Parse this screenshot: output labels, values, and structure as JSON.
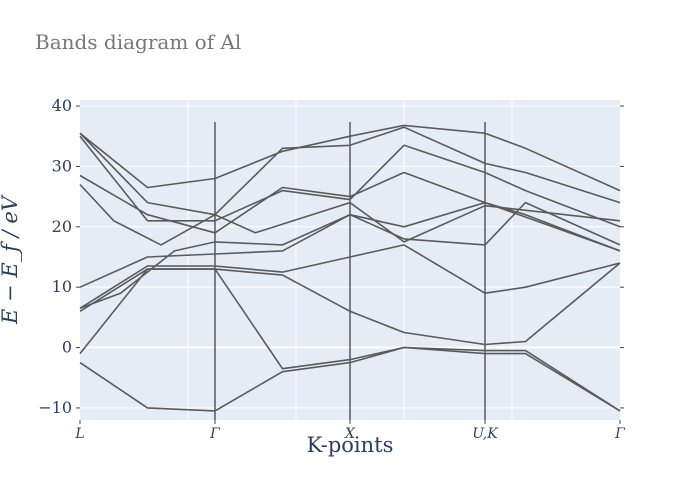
{
  "chart_data": {
    "type": "line",
    "title": "Bands diagram of Al",
    "xlabel": "K-points",
    "ylabel": "E − E_f  /  eV",
    "ylim": [
      -12,
      41
    ],
    "xlim": [
      0,
      4
    ],
    "yticks": [
      -10,
      0,
      10,
      20,
      30,
      40
    ],
    "high_symmetry_points": [
      {
        "label": "L",
        "x": 0
      },
      {
        "label": "Γ",
        "x": 1
      },
      {
        "label": "X",
        "x": 2
      },
      {
        "label": "U,K",
        "x": 3
      },
      {
        "label": "Γ",
        "x": 4
      }
    ],
    "grid": true,
    "line_color": "#5a5a5a",
    "series": [
      {
        "x": [
          0,
          0.5,
          1,
          1.5,
          2,
          2.4,
          3,
          3.3,
          4
        ],
        "values": [
          -2.5,
          -10,
          -10.5,
          -4,
          -2.5,
          0,
          -1,
          -1,
          -10.5
        ]
      },
      {
        "x": [
          0,
          0.5,
          1,
          1.5,
          2,
          2.4,
          3,
          3.3,
          4
        ],
        "values": [
          -1,
          13,
          13,
          -3.5,
          -2,
          0,
          -0.5,
          -0.5,
          -10.5
        ]
      },
      {
        "x": [
          0,
          0.5,
          1,
          1.5,
          2,
          2.4,
          3,
          3.3,
          4
        ],
        "values": [
          6,
          13,
          13,
          12,
          6,
          2.5,
          0.5,
          1,
          14
        ]
      },
      {
        "x": [
          0,
          0.5,
          1,
          1.5,
          2,
          2.4,
          3,
          3.3,
          4
        ],
        "values": [
          6.5,
          13.5,
          13.5,
          12.5,
          15,
          17,
          9,
          10,
          14
        ]
      },
      {
        "x": [
          0,
          0.3,
          0.7,
          1,
          1.5,
          2,
          2.4,
          3,
          4
        ],
        "values": [
          6.5,
          9,
          16,
          17.5,
          17,
          22,
          20,
          24,
          16
        ]
      },
      {
        "x": [
          0,
          0.5,
          1,
          1.5,
          2,
          2.4,
          3,
          3.3,
          4
        ],
        "values": [
          10,
          15,
          15.5,
          16,
          22,
          18,
          17,
          24,
          17
        ]
      },
      {
        "x": [
          0,
          0.5,
          1,
          1.5,
          2,
          2.4,
          3,
          3.3,
          4
        ],
        "values": [
          28.5,
          22,
          19,
          26.5,
          25,
          29,
          24,
          22,
          16
        ]
      },
      {
        "x": [
          0,
          0.5,
          1,
          1.5,
          2,
          2.4,
          3,
          3.3,
          4
        ],
        "values": [
          35,
          21,
          21,
          26,
          24.5,
          33.5,
          29,
          26,
          20
        ]
      },
      {
        "x": [
          0,
          0.5,
          1,
          1.5,
          2,
          2.4,
          3,
          3.3,
          4
        ],
        "values": [
          35.5,
          24,
          22,
          33,
          33.5,
          36.5,
          30.5,
          29,
          24
        ]
      },
      {
        "x": [
          0,
          0.5,
          1,
          1.5,
          2,
          2.4,
          3,
          3.3,
          4
        ],
        "values": [
          35.5,
          26.5,
          28,
          32.5,
          35,
          36.8,
          35.5,
          33,
          26
        ]
      },
      {
        "x": [
          0,
          0.25,
          0.6,
          1,
          1.3,
          2,
          2.4,
          3,
          4
        ],
        "values": [
          27,
          21,
          17,
          22,
          19,
          24,
          17.5,
          23.5,
          21
        ]
      }
    ]
  }
}
